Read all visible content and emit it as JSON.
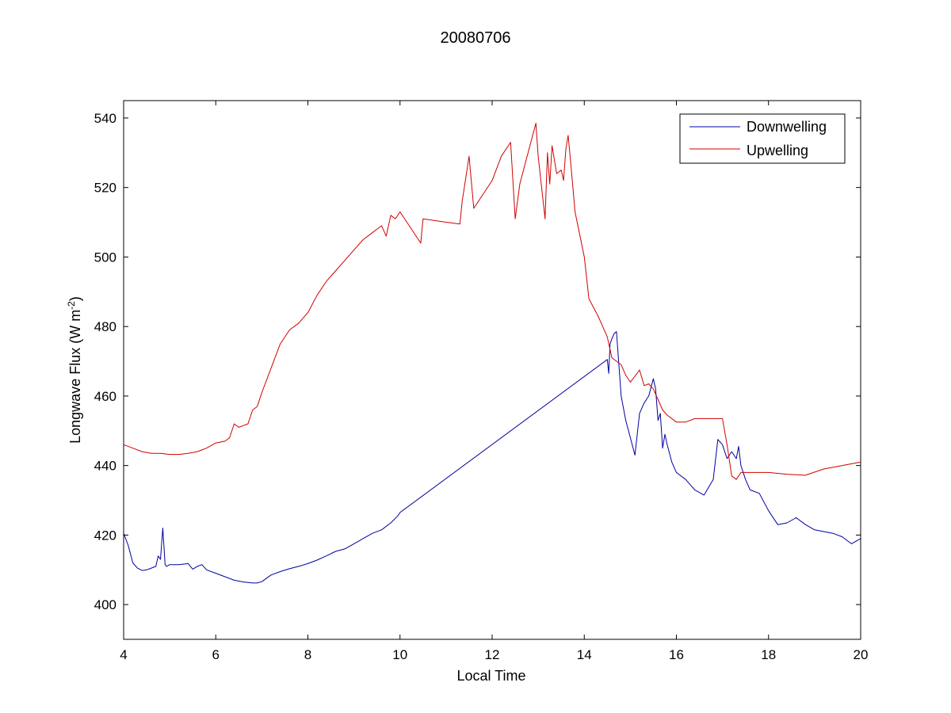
{
  "chart_data": {
    "type": "line",
    "title": "20080706",
    "xlabel": "Local Time",
    "ylabel": "Longwave Flux (W m",
    "ylabel_sup": "-2",
    "ylabel_suffix": ")",
    "xlim": [
      4,
      20
    ],
    "ylim": [
      390,
      545
    ],
    "xticks": [
      4,
      6,
      8,
      10,
      12,
      14,
      16,
      18,
      20
    ],
    "yticks": [
      400,
      420,
      440,
      460,
      480,
      500,
      520,
      540
    ],
    "grid": false,
    "legend_position": "top-right",
    "series": [
      {
        "name": "Downwelling",
        "color": "#0000a0",
        "x": [
          4.0,
          4.1,
          4.2,
          4.3,
          4.4,
          4.5,
          4.6,
          4.7,
          4.75,
          4.8,
          4.85,
          4.88,
          4.9,
          4.93,
          5.0,
          5.2,
          5.4,
          5.5,
          5.6,
          5.7,
          5.8,
          6.0,
          6.2,
          6.4,
          6.6,
          6.8,
          6.9,
          7.0,
          7.2,
          7.4,
          7.6,
          7.8,
          8.0,
          8.2,
          8.4,
          8.6,
          8.8,
          9.0,
          9.2,
          9.4,
          9.6,
          9.8,
          9.95,
          10.0,
          14.5,
          14.53,
          14.56,
          14.6,
          14.65,
          14.7,
          14.8,
          14.9,
          15.0,
          15.1,
          15.2,
          15.3,
          15.4,
          15.5,
          15.55,
          15.6,
          15.65,
          15.7,
          15.75,
          15.8,
          15.9,
          16.0,
          16.2,
          16.4,
          16.6,
          16.8,
          16.9,
          17.0,
          17.1,
          17.2,
          17.3,
          17.35,
          17.4,
          17.5,
          17.6,
          17.8,
          18.0,
          18.2,
          18.4,
          18.6,
          18.8,
          19.0,
          19.2,
          19.4,
          19.6,
          19.8,
          20.0
        ],
        "values": [
          420.5,
          417,
          412,
          410.5,
          409.8,
          410,
          410.5,
          411,
          414,
          413,
          422,
          416,
          411.5,
          411,
          411.5,
          411.5,
          411.8,
          410.2,
          411,
          411.5,
          410,
          409,
          408,
          407,
          406.5,
          406.2,
          406.2,
          406.6,
          408.5,
          409.5,
          410.3,
          411,
          411.8,
          412.8,
          414,
          415.3,
          416,
          417.5,
          419,
          420.5,
          421.5,
          423.5,
          425.5,
          426.5,
          470.5,
          466.5,
          475,
          476.5,
          478,
          478.5,
          460,
          453,
          448,
          443,
          455,
          458,
          460,
          465,
          462,
          453,
          455,
          445,
          449,
          446,
          441,
          438,
          436,
          433,
          431.5,
          436,
          447.5,
          446,
          442,
          444,
          442,
          445.5,
          440,
          436,
          433,
          432,
          427,
          423,
          423.5,
          425,
          423,
          421.5,
          421,
          420.5,
          419.5,
          417.5,
          419
        ]
      },
      {
        "name": "Upwelling",
        "color": "#d00000",
        "x": [
          4.0,
          4.2,
          4.4,
          4.6,
          4.8,
          5.0,
          5.2,
          5.4,
          5.6,
          5.8,
          6.0,
          6.2,
          6.3,
          6.4,
          6.5,
          6.6,
          6.7,
          6.8,
          6.9,
          7.0,
          7.2,
          7.4,
          7.6,
          7.8,
          8.0,
          8.2,
          8.4,
          8.6,
          8.8,
          9.0,
          9.2,
          9.4,
          9.6,
          9.7,
          9.8,
          9.9,
          10.0,
          10.45,
          10.5,
          11.0,
          11.3,
          11.35,
          11.5,
          11.6,
          12.0,
          12.2,
          12.4,
          12.5,
          12.6,
          12.95,
          13.0,
          13.15,
          13.2,
          13.25,
          13.3,
          13.4,
          13.5,
          13.55,
          13.6,
          13.65,
          13.7,
          13.8,
          14.0,
          14.1,
          14.3,
          14.5,
          14.6,
          14.8,
          14.9,
          15.0,
          15.2,
          15.3,
          15.4,
          15.5,
          15.6,
          15.7,
          15.8,
          16.0,
          16.2,
          16.4,
          16.6,
          16.8,
          17.0,
          17.1,
          17.2,
          17.3,
          17.4,
          17.6,
          18.0,
          18.4,
          18.8,
          19.2,
          19.6,
          20.0
        ],
        "values": [
          446,
          445,
          444,
          443.5,
          443.5,
          443.2,
          443.2,
          443.5,
          444,
          445,
          446.5,
          447,
          448,
          452,
          451,
          451.5,
          452,
          456,
          457,
          461,
          468,
          475,
          479,
          481,
          484,
          489,
          493,
          496,
          499,
          502,
          505,
          507,
          509,
          506,
          512,
          511,
          513,
          504,
          511,
          510,
          509.5,
          516,
          529,
          514,
          522,
          529,
          533,
          511,
          521,
          538.5,
          529,
          511,
          530,
          521,
          532,
          524,
          525,
          522,
          531,
          535,
          528,
          513,
          500,
          488,
          483,
          477,
          471,
          469,
          466,
          464,
          467.5,
          463,
          463.5,
          462,
          459,
          456,
          454.5,
          452.5,
          452.5,
          453.5,
          453.5,
          453.5,
          453.5,
          446,
          437,
          436,
          438,
          438,
          438,
          437.5,
          437.2,
          439,
          440,
          441
        ]
      }
    ]
  }
}
